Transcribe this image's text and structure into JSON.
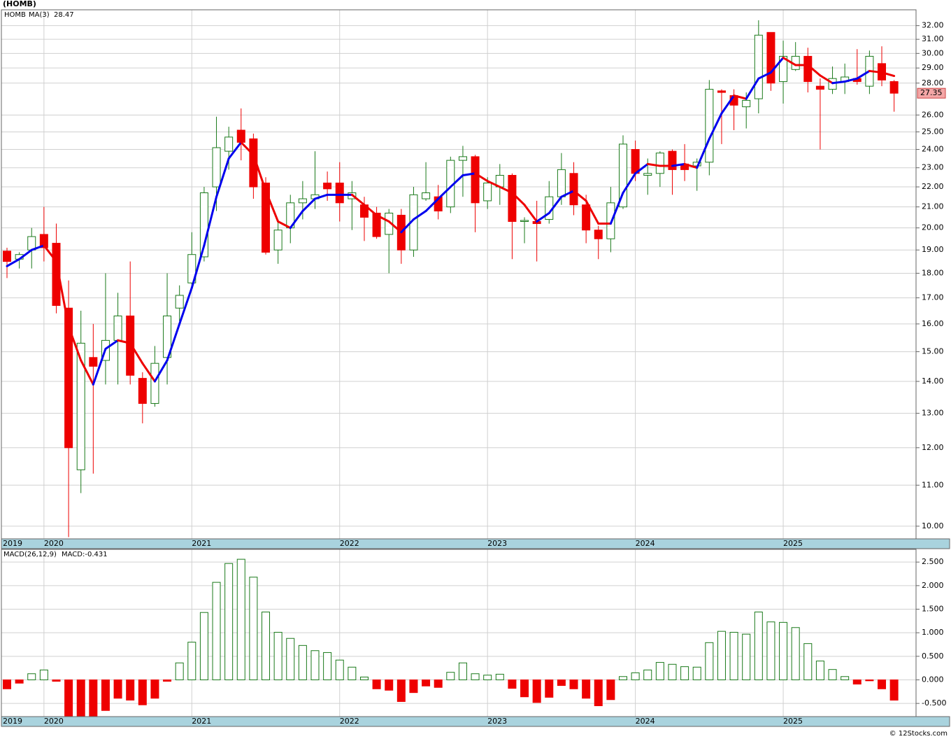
{
  "chart_data": [
    {
      "type": "candlestick",
      "title": "(HOMB)",
      "symbol": "HOMB",
      "log_scale": true,
      "grid": true,
      "up_color": "#1b7a1b",
      "down_color": "#ee0000",
      "categories": [
        "2019",
        null,
        null,
        "2020",
        null,
        null,
        null,
        null,
        null,
        null,
        null,
        null,
        null,
        null,
        null,
        "2021",
        null,
        null,
        null,
        null,
        null,
        null,
        null,
        null,
        null,
        null,
        null,
        "2022",
        null,
        null,
        null,
        null,
        null,
        null,
        null,
        null,
        null,
        null,
        null,
        "2023",
        null,
        null,
        null,
        null,
        null,
        null,
        null,
        null,
        null,
        null,
        null,
        "2024",
        null,
        null,
        null,
        null,
        null,
        null,
        null,
        null,
        null,
        null,
        null,
        "2025",
        null,
        null,
        null,
        null,
        null,
        null,
        null,
        null,
        null
      ],
      "open": [
        18.95,
        18.6,
        19.0,
        19.7,
        19.3,
        16.6,
        11.4,
        14.8,
        14.7,
        15.4,
        16.3,
        14.1,
        13.3,
        14.8,
        16.6,
        17.6,
        18.7,
        22.0,
        23.9,
        25.1,
        24.6,
        22.2,
        19.0,
        20.0,
        21.2,
        21.4,
        22.2,
        22.2,
        21.4,
        21.1,
        20.7,
        19.7,
        20.6,
        19.0,
        21.4,
        21.5,
        21.0,
        23.4,
        23.6,
        21.3,
        22.0,
        22.6,
        20.3,
        20.3,
        20.4,
        21.5,
        22.7,
        21.1,
        19.9,
        19.5,
        21.0,
        24.0,
        22.6,
        22.7,
        23.9,
        23.2,
        23.1,
        23.3,
        27.5,
        27.2,
        26.5,
        27.0,
        31.5,
        28.1,
        28.9,
        29.8,
        27.8,
        27.6,
        28.1,
        28.3,
        27.8,
        29.3,
        28.1
      ],
      "high": [
        19.1,
        18.9,
        20.0,
        21.0,
        20.2,
        17.7,
        16.5,
        16.0,
        18.0,
        17.2,
        18.5,
        14.3,
        15.2,
        18.0,
        17.5,
        19.8,
        22.0,
        25.9,
        25.3,
        26.4,
        24.9,
        22.5,
        20.4,
        21.6,
        22.3,
        23.9,
        22.8,
        23.3,
        22.3,
        21.5,
        21.0,
        20.9,
        20.9,
        22.0,
        23.3,
        22.1,
        23.6,
        24.2,
        23.7,
        22.5,
        23.2,
        22.7,
        20.5,
        21.3,
        22.3,
        23.8,
        23.3,
        21.6,
        20.1,
        22.0,
        24.8,
        24.5,
        23.5,
        23.9,
        24.0,
        24.3,
        23.5,
        28.2,
        27.6,
        27.6,
        27.4,
        32.4,
        31.5,
        30.9,
        30.8,
        30.4,
        28.3,
        29.1,
        29.3,
        30.3,
        30.2,
        30.5,
        28.2
      ],
      "low": [
        17.8,
        18.2,
        18.2,
        18.5,
        16.4,
        9.75,
        10.8,
        11.3,
        13.9,
        13.9,
        13.9,
        12.7,
        13.2,
        13.9,
        16.1,
        17.4,
        18.5,
        20.8,
        22.9,
        23.4,
        21.4,
        18.8,
        18.4,
        19.3,
        20.4,
        20.9,
        21.3,
        20.3,
        19.9,
        19.4,
        19.5,
        18.0,
        18.4,
        18.7,
        21.3,
        20.4,
        20.7,
        21.5,
        19.8,
        20.9,
        21.1,
        18.6,
        19.3,
        18.5,
        20.2,
        21.1,
        20.6,
        19.3,
        18.6,
        18.9,
        20.9,
        22.3,
        21.6,
        22.0,
        21.6,
        22.3,
        21.8,
        22.6,
        24.3,
        25.1,
        25.2,
        26.1,
        27.5,
        26.7,
        28.8,
        27.4,
        24.0,
        27.3,
        27.3,
        27.9,
        27.3,
        27.8,
        26.2
      ],
      "close": [
        18.5,
        18.8,
        19.6,
        19.1,
        16.7,
        12.0,
        15.3,
        14.5,
        15.4,
        16.3,
        14.2,
        13.3,
        14.6,
        16.3,
        17.1,
        18.8,
        21.7,
        24.1,
        24.7,
        24.4,
        22.0,
        18.9,
        19.9,
        21.2,
        21.4,
        21.6,
        21.9,
        21.2,
        21.7,
        20.5,
        19.6,
        20.7,
        19.0,
        21.6,
        21.7,
        20.8,
        23.4,
        23.6,
        21.2,
        22.2,
        22.6,
        20.3,
        20.35,
        20.2,
        21.5,
        22.9,
        21.1,
        19.9,
        19.5,
        21.2,
        24.3,
        22.7,
        22.7,
        23.8,
        22.9,
        22.9,
        23.3,
        27.6,
        27.4,
        26.6,
        26.9,
        31.3,
        28.0,
        29.8,
        29.8,
        28.1,
        27.6,
        28.3,
        28.4,
        28.1,
        29.8,
        28.2,
        27.35
      ],
      "ma": {
        "name": "MA(3)",
        "up_color": "#0000ee",
        "down_color": "#ee0000",
        "values": [
          18.3,
          18.6,
          19.0,
          19.2,
          18.5,
          15.9,
          14.7,
          13.9,
          15.1,
          15.4,
          15.3,
          14.6,
          14.0,
          14.7,
          16.0,
          17.4,
          19.2,
          21.5,
          23.5,
          24.4,
          23.7,
          21.8,
          20.3,
          20.0,
          20.8,
          21.4,
          21.6,
          21.6,
          21.6,
          21.1,
          20.6,
          20.3,
          19.8,
          20.4,
          20.8,
          21.4,
          22.0,
          22.6,
          22.7,
          22.3,
          22.0,
          21.7,
          21.1,
          20.3,
          20.7,
          21.5,
          21.8,
          21.3,
          20.2,
          20.2,
          21.7,
          22.7,
          23.2,
          23.1,
          23.1,
          23.2,
          23.0,
          24.6,
          26.1,
          27.2,
          27.0,
          28.3,
          28.7,
          29.7,
          29.2,
          29.2,
          28.5,
          28.0,
          28.1,
          28.3,
          28.8,
          28.7,
          28.47
        ]
      },
      "ylim": [
        9.71,
        33.2
      ],
      "yticks": [
        {
          "value": 32,
          "label": "32.00"
        },
        {
          "value": 31,
          "label": "31.00"
        },
        {
          "value": 30,
          "label": "30.00"
        },
        {
          "value": 29,
          "label": "29.00"
        },
        {
          "value": 28,
          "label": "28.00"
        },
        {
          "value": 26,
          "label": "26.00"
        },
        {
          "value": 25,
          "label": "25.00"
        },
        {
          "value": 24,
          "label": "24.00"
        },
        {
          "value": 23,
          "label": "23.00"
        },
        {
          "value": 22,
          "label": "22.00"
        },
        {
          "value": 21,
          "label": "21.00"
        },
        {
          "value": 20,
          "label": "20.00"
        },
        {
          "value": 19,
          "label": "19.00"
        },
        {
          "value": 18,
          "label": "18.00"
        },
        {
          "value": 17,
          "label": "17.00"
        },
        {
          "value": 16,
          "label": "16.00"
        },
        {
          "value": 15,
          "label": "15.00"
        },
        {
          "value": 14,
          "label": "14.00"
        },
        {
          "value": 13,
          "label": "13.00"
        },
        {
          "value": 12,
          "label": "12.00"
        },
        {
          "value": 11,
          "label": "11.00"
        },
        {
          "value": 10,
          "label": "10.00"
        }
      ]
    },
    {
      "type": "bar",
      "title": "MACD(26,12,9)",
      "readout": "MACD:-0.431",
      "grid": true,
      "up_color": "#1b7a1b",
      "down_color": "#ee0000",
      "values": [
        -0.19,
        -0.07,
        0.13,
        0.21,
        -0.03,
        -0.78,
        -0.82,
        -0.8,
        -0.65,
        -0.39,
        -0.43,
        -0.53,
        -0.39,
        -0.03,
        0.36,
        0.8,
        1.43,
        2.07,
        2.47,
        2.56,
        2.18,
        1.44,
        1.01,
        0.88,
        0.73,
        0.62,
        0.58,
        0.42,
        0.27,
        0.06,
        -0.19,
        -0.22,
        -0.46,
        -0.27,
        -0.13,
        -0.16,
        0.16,
        0.36,
        0.13,
        0.1,
        0.12,
        -0.18,
        -0.36,
        -0.48,
        -0.37,
        -0.12,
        -0.19,
        -0.39,
        -0.55,
        -0.42,
        0.07,
        0.15,
        0.21,
        0.37,
        0.33,
        0.28,
        0.27,
        0.79,
        1.03,
        1.01,
        0.97,
        1.44,
        1.23,
        1.22,
        1.11,
        0.77,
        0.4,
        0.22,
        0.07,
        -0.09,
        -0.02,
        -0.19,
        -0.431
      ],
      "ylim": [
        -0.78,
        2.77
      ],
      "yticks": [
        {
          "value": 2.5,
          "label": "2.500"
        },
        {
          "value": 2,
          "label": "2.000"
        },
        {
          "value": 1.5,
          "label": "1.500"
        },
        {
          "value": 1,
          "label": "1.000"
        },
        {
          "value": 0.5,
          "label": "0.500"
        },
        {
          "value": 0,
          "label": "0.000"
        },
        {
          "value": -0.5,
          "label": "-0.500"
        }
      ]
    }
  ],
  "footer": "© 12Stocks.com"
}
